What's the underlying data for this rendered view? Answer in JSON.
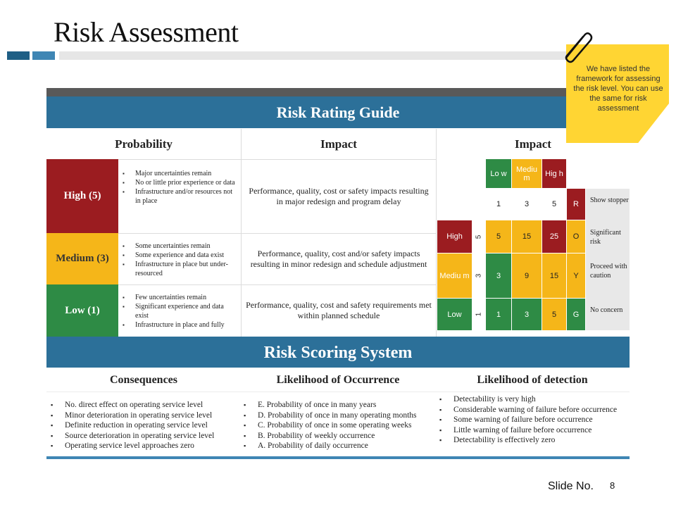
{
  "page": {
    "title": "Risk Assessment",
    "slide_label": "Slide No.",
    "slide_number": "8"
  },
  "note": {
    "text": "We have listed the framework for assessing the risk level. You can use the same for risk assessment"
  },
  "rating_guide": {
    "title": "Risk Rating Guide",
    "headers": {
      "probability": "Probability",
      "impact": "Impact",
      "matrix": "Impact"
    },
    "rows": [
      {
        "label": "High (5)",
        "color": "#9b1c20",
        "bullets": [
          "Major uncertainties remain",
          "No or little prior experience or data",
          "Infrastructure and/or resources not in place"
        ],
        "impact": "Performance, quality, cost or safety impacts resulting in major redesign and program delay"
      },
      {
        "label": "Medium (3)",
        "color": "#f5b619",
        "bullets": [
          "Some uncertainties remain",
          "Some experience and data exist",
          "Infrastructure in place but under-resourced"
        ],
        "impact": "Performance, quality, cost and/or safety impacts resulting in minor redesign and schedule adjustment"
      },
      {
        "label": "Low (1)",
        "color": "#2e8b45",
        "bullets": [
          "Few uncertainties remain",
          "Significant experience and data exist",
          "Infrastructure in place and fully"
        ],
        "impact": "Performance, quality, cost and safety requirements met within planned schedule"
      }
    ],
    "matrix": {
      "impact_levels": [
        "Lo w",
        "Mediu m",
        "Hig h"
      ],
      "impact_values": [
        "1",
        "3",
        "5"
      ],
      "probability_levels": [
        "High",
        "Mediu m",
        "Low"
      ],
      "probability_values": [
        "5",
        "3",
        "1"
      ],
      "cells": [
        [
          "5",
          "15",
          "25"
        ],
        [
          "3",
          "9",
          "15"
        ],
        [
          "1",
          "3",
          "5"
        ]
      ],
      "legend": [
        {
          "code": "R",
          "text": "Show stopper"
        },
        {
          "code": "O",
          "text": "Significant risk"
        },
        {
          "code": "Y",
          "text": "Proceed with caution"
        },
        {
          "code": "G",
          "text": "No concern"
        }
      ],
      "colors": {
        "red": "#9b1c20",
        "orange": "#f5b619",
        "green": "#2e8b45"
      }
    }
  },
  "scoring": {
    "title": "Risk Scoring System",
    "headers": [
      "Consequences",
      "Likelihood of Occurrence",
      "Likelihood of detection"
    ],
    "consequences": [
      "No. direct effect on operating service level",
      "Minor deterioration in operating service level",
      "Definite reduction in operating service level",
      "Source deterioration in operating service level",
      "Operating service level approaches zero"
    ],
    "occurrence": [
      "E. Probability of once in many years",
      "D. Probability of once in many operating months",
      "C. Probability of once in some operating weeks",
      "B. Probability of weekly occurrence",
      "A. Probability of daily occurrence"
    ],
    "detection": [
      "Detectability is very high",
      "Considerable warning of failure before occurrence",
      "Some warning of failure before occurrence",
      "Little warning of failure before occurrence",
      "Detectability is effectively zero"
    ]
  }
}
